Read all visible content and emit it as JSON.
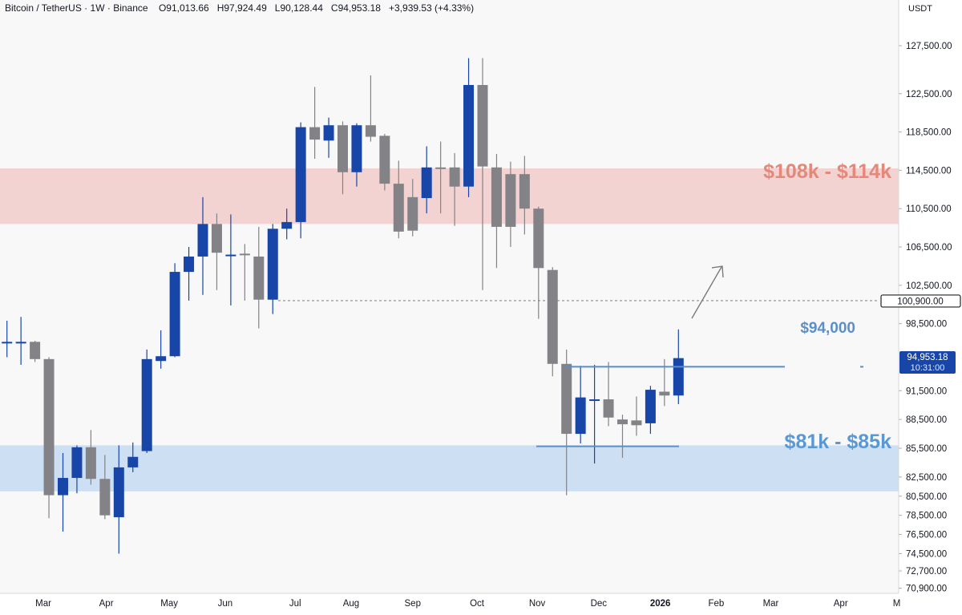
{
  "header": {
    "symbol": "Bitcoin / TetherUS",
    "interval": "1W",
    "exchange": "Binance",
    "ohlc": {
      "o_label": "O",
      "o": "91,013.66",
      "h_label": "H",
      "h": "97,924.49",
      "l_label": "L",
      "l": "90,128.44",
      "c_label": "C",
      "c": "94,953.18",
      "change": "+3,939.53 (+4.33%)"
    },
    "currency": "USDT"
  },
  "annotations": {
    "resistance_zone": "$108k - $114k",
    "support_zone": "$81k - $85k",
    "breakout_level": "$94,000",
    "target_line_label": "100,900.00",
    "last_price": "94,953.18",
    "countdown": "10:31:00"
  },
  "colors": {
    "up": "#1846a8",
    "down": "#838387",
    "resistance_zone": "#f3d3d1",
    "support_zone": "#cddff2",
    "resistance_text": "#e4897a",
    "support_text": "#5a98d4",
    "level_line": "#5a8fc8",
    "background": "#f8f8f8"
  },
  "chart_data": {
    "type": "candlestick",
    "title": "Bitcoin / TetherUS · 1W · Binance",
    "ylim": [
      70000,
      130600
    ],
    "y_ticks": [
      {
        "value": 127500,
        "label": "127,500.00"
      },
      {
        "value": 122500,
        "label": "122,500.00"
      },
      {
        "value": 118500,
        "label": "118,500.00"
      },
      {
        "value": 114500,
        "label": "114,500.00"
      },
      {
        "value": 110500,
        "label": "110,500.00"
      },
      {
        "value": 106500,
        "label": "106,500.00"
      },
      {
        "value": 102500,
        "label": "102,500.00"
      },
      {
        "value": 98500,
        "label": "98,500.00"
      },
      {
        "value": 91500,
        "label": "91,500.00"
      },
      {
        "value": 88500,
        "label": "88,500.00"
      },
      {
        "value": 85500,
        "label": "85,500.00"
      },
      {
        "value": 82500,
        "label": "82,500.00"
      },
      {
        "value": 80500,
        "label": "80,500.00"
      },
      {
        "value": 78500,
        "label": "78,500.00"
      },
      {
        "value": 76500,
        "label": "76,500.00"
      },
      {
        "value": 74500,
        "label": "74,500.00"
      },
      {
        "value": 72700,
        "label": "72,700.00"
      },
      {
        "value": 70900,
        "label": "70,900.00"
      }
    ],
    "x_ticks": [
      {
        "index": 2.6,
        "label": "Mar",
        "bold": false
      },
      {
        "index": 7.1,
        "label": "Apr",
        "bold": false
      },
      {
        "index": 11.6,
        "label": "May",
        "bold": false
      },
      {
        "index": 15.6,
        "label": "Jun",
        "bold": false
      },
      {
        "index": 20.6,
        "label": "Jul",
        "bold": false
      },
      {
        "index": 24.6,
        "label": "Aug",
        "bold": false
      },
      {
        "index": 29.0,
        "label": "Sep",
        "bold": false
      },
      {
        "index": 33.6,
        "label": "Oct",
        "bold": false
      },
      {
        "index": 37.9,
        "label": "Nov",
        "bold": false
      },
      {
        "index": 42.3,
        "label": "Dec",
        "bold": false
      },
      {
        "index": 46.7,
        "label": "2026",
        "bold": true
      },
      {
        "index": 50.7,
        "label": "Feb",
        "bold": false
      },
      {
        "index": 54.6,
        "label": "Mar",
        "bold": false
      },
      {
        "index": 59.6,
        "label": "Apr",
        "bold": false
      },
      {
        "index": 63.6,
        "label": "M",
        "bold": false
      }
    ],
    "candles": [
      {
        "o": 96500,
        "h": 98800,
        "l": 95000,
        "c": 96600
      },
      {
        "o": 96500,
        "h": 99200,
        "l": 94200,
        "c": 96600
      },
      {
        "o": 96600,
        "h": 96700,
        "l": 94500,
        "c": 94800
      },
      {
        "o": 94800,
        "h": 95000,
        "l": 78200,
        "c": 80600
      },
      {
        "o": 80600,
        "h": 85000,
        "l": 76800,
        "c": 82400
      },
      {
        "o": 82400,
        "h": 85800,
        "l": 80800,
        "c": 85600
      },
      {
        "o": 85600,
        "h": 87400,
        "l": 81700,
        "c": 82300
      },
      {
        "o": 82300,
        "h": 84800,
        "l": 78100,
        "c": 78500
      },
      {
        "o": 78300,
        "h": 85800,
        "l": 74500,
        "c": 83500
      },
      {
        "o": 83500,
        "h": 86100,
        "l": 83000,
        "c": 84600
      },
      {
        "o": 85200,
        "h": 95800,
        "l": 85000,
        "c": 94800
      },
      {
        "o": 94600,
        "h": 97800,
        "l": 93800,
        "c": 95100
      },
      {
        "o": 95100,
        "h": 104800,
        "l": 95000,
        "c": 103900
      },
      {
        "o": 103900,
        "h": 106500,
        "l": 100900,
        "c": 105500
      },
      {
        "o": 105500,
        "h": 111700,
        "l": 101500,
        "c": 108900
      },
      {
        "o": 108900,
        "h": 110000,
        "l": 102000,
        "c": 105900
      },
      {
        "o": 105700,
        "h": 109900,
        "l": 100400,
        "c": 105700
      },
      {
        "o": 105800,
        "h": 106800,
        "l": 100900,
        "c": 105700
      },
      {
        "o": 105500,
        "h": 108600,
        "l": 98000,
        "c": 101000
      },
      {
        "o": 101000,
        "h": 108900,
        "l": 99500,
        "c": 108400
      },
      {
        "o": 108400,
        "h": 110500,
        "l": 107300,
        "c": 109100
      },
      {
        "o": 109100,
        "h": 119500,
        "l": 107400,
        "c": 119000
      },
      {
        "o": 119000,
        "h": 123200,
        "l": 115700,
        "c": 117700
      },
      {
        "o": 117600,
        "h": 120000,
        "l": 115800,
        "c": 119200
      },
      {
        "o": 119200,
        "h": 119600,
        "l": 112000,
        "c": 114300
      },
      {
        "o": 114300,
        "h": 119400,
        "l": 112800,
        "c": 119200
      },
      {
        "o": 119200,
        "h": 124400,
        "l": 117500,
        "c": 118000
      },
      {
        "o": 118100,
        "h": 118300,
        "l": 112400,
        "c": 113100
      },
      {
        "o": 113100,
        "h": 115500,
        "l": 107400,
        "c": 108100
      },
      {
        "o": 111700,
        "h": 113600,
        "l": 107600,
        "c": 108200
      },
      {
        "o": 111600,
        "h": 117000,
        "l": 110000,
        "c": 114800
      },
      {
        "o": 114800,
        "h": 117500,
        "l": 110000,
        "c": 114700
      },
      {
        "o": 114800,
        "h": 116300,
        "l": 108700,
        "c": 112800
      },
      {
        "o": 112800,
        "h": 126200,
        "l": 111700,
        "c": 123400
      },
      {
        "o": 123400,
        "h": 126200,
        "l": 102000,
        "c": 114900
      },
      {
        "o": 114800,
        "h": 116200,
        "l": 104300,
        "c": 108600
      },
      {
        "o": 114100,
        "h": 115400,
        "l": 106500,
        "c": 108600
      },
      {
        "o": 114100,
        "h": 116000,
        "l": 107800,
        "c": 110500
      },
      {
        "o": 110500,
        "h": 110700,
        "l": 99000,
        "c": 104300
      },
      {
        "o": 104100,
        "h": 104400,
        "l": 93000,
        "c": 94300
      },
      {
        "o": 94300,
        "h": 95800,
        "l": 80600,
        "c": 87000
      },
      {
        "o": 87000,
        "h": 94100,
        "l": 86000,
        "c": 90800
      },
      {
        "o": 90500,
        "h": 94200,
        "l": 83900,
        "c": 90600
      },
      {
        "o": 90600,
        "h": 94500,
        "l": 87800,
        "c": 88700
      },
      {
        "o": 88500,
        "h": 89000,
        "l": 84500,
        "c": 88000
      },
      {
        "o": 88400,
        "h": 90900,
        "l": 86800,
        "c": 87900
      },
      {
        "o": 88100,
        "h": 92000,
        "l": 87000,
        "c": 91600
      },
      {
        "o": 91400,
        "h": 94800,
        "l": 89900,
        "c": 91000
      },
      {
        "o": 91000,
        "h": 97900,
        "l": 90100,
        "c": 94900
      }
    ],
    "zones": [
      {
        "label": "$108k - $114k",
        "from": 108900,
        "to": 114700
      },
      {
        "label": "$81k - $85k",
        "from": 81000,
        "to": 85800
      }
    ],
    "levels": [
      {
        "label": "$94,000",
        "value": 94000
      },
      {
        "label": "100,900.00",
        "value": 100900,
        "style": "dotted"
      }
    ],
    "last_price": 94953.18
  }
}
